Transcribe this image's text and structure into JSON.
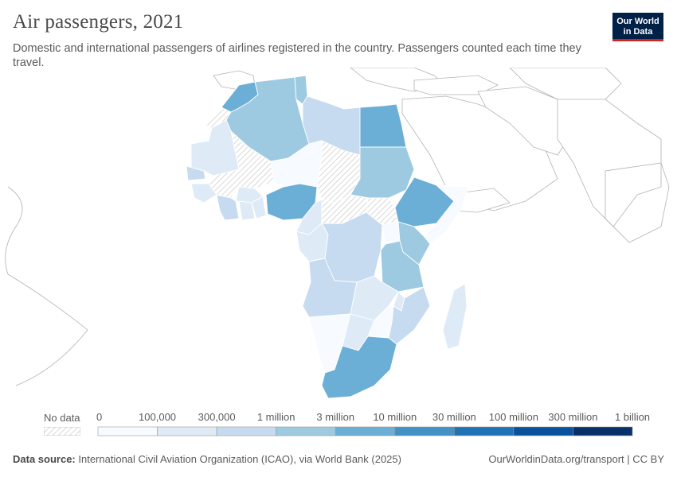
{
  "header": {
    "title": "Air passengers, 2021",
    "subtitle": "Domestic and international passengers of airlines registered in the country. Passengers counted each time they travel.",
    "logo_line1": "Our World",
    "logo_line2": "in Data"
  },
  "legend": {
    "no_data_label": "No data",
    "bins": [
      "0",
      "100,000",
      "300,000",
      "1 million",
      "3 million",
      "10 million",
      "30 million",
      "100 million",
      "300 million",
      "1 billion"
    ],
    "colors": [
      "#f7fbff",
      "#deebf7",
      "#c6dbef",
      "#9ecae1",
      "#6baed6",
      "#4292c6",
      "#2171b5",
      "#08519c",
      "#08306b"
    ]
  },
  "chart_data": {
    "type": "choropleth",
    "region": "Africa",
    "year": 2021,
    "regions": [
      {
        "name": "Morocco",
        "bin": "3 million – 10 million"
      },
      {
        "name": "Algeria",
        "bin": "1 million – 3 million"
      },
      {
        "name": "Tunisia",
        "bin": "1 million – 3 million"
      },
      {
        "name": "Libya",
        "bin": "300,000 – 1 million"
      },
      {
        "name": "Egypt",
        "bin": "3 million – 10 million"
      },
      {
        "name": "Sudan",
        "bin": "1 million – 3 million"
      },
      {
        "name": "Ethiopia",
        "bin": "3 million – 10 million"
      },
      {
        "name": "Kenya",
        "bin": "1 million – 3 million"
      },
      {
        "name": "Tanzania",
        "bin": "1 million – 3 million"
      },
      {
        "name": "Nigeria",
        "bin": "3 million – 10 million"
      },
      {
        "name": "South Africa",
        "bin": "3 million – 10 million"
      },
      {
        "name": "DR Congo",
        "bin": "300,000 – 1 million"
      },
      {
        "name": "Angola",
        "bin": "300,000 – 1 million"
      },
      {
        "name": "Mozambique",
        "bin": "300,000 – 1 million"
      },
      {
        "name": "Madagascar",
        "bin": "100,000 – 300,000"
      },
      {
        "name": "Mauritania",
        "bin": "100,000 – 300,000"
      },
      {
        "name": "Mali",
        "bin": "No data"
      },
      {
        "name": "Chad",
        "bin": "No data"
      },
      {
        "name": "South Sudan",
        "bin": "No data"
      }
    ]
  },
  "footer": {
    "source_label": "Data source:",
    "source_text": "International Civil Aviation Organization (ICAO), via World Bank (2025)",
    "url": "OurWorldinData.org/transport | CC BY"
  }
}
